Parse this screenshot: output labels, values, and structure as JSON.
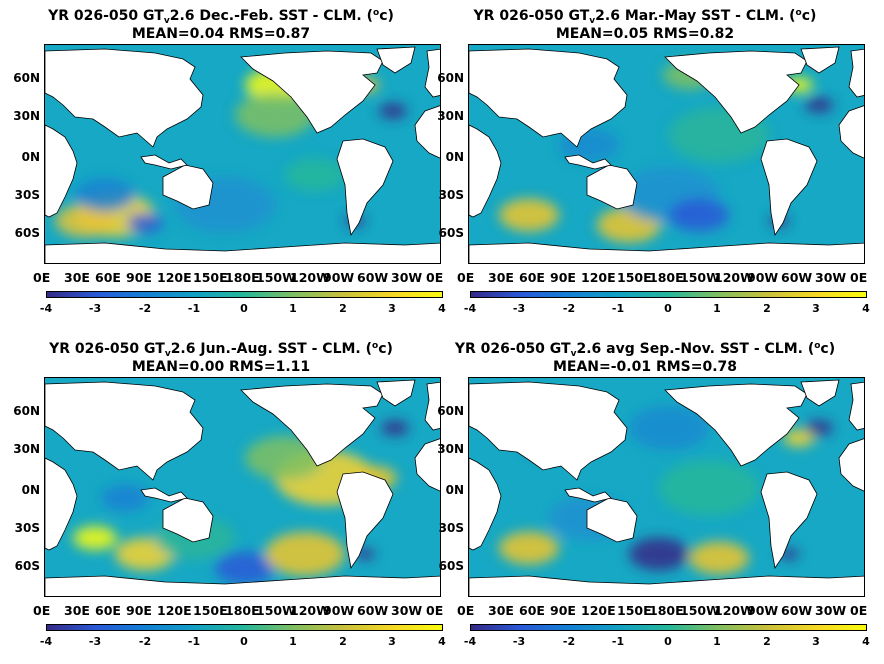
{
  "panels": [
    {
      "title_prefix": "YR 026-050 GT",
      "title_sub": "v",
      "title_mid": "2.6  Dec.-Feb. SST - CLM. (",
      "title_sup": "o",
      "title_end": "c)",
      "stats": "MEAN=0.04   RMS=0.87"
    },
    {
      "title_prefix": "YR 026-050 GT",
      "title_sub": "v",
      "title_mid": "2.6 Mar.-May SST - CLM. (",
      "title_sup": "o",
      "title_end": "c)",
      "stats": "MEAN=0.05   RMS=0.82"
    },
    {
      "title_prefix": "YR 026-050 GT",
      "title_sub": "v",
      "title_mid": "2.6 Jun.-Aug. SST - CLM. (",
      "title_sup": "o",
      "title_end": "c)",
      "stats": "MEAN=0.00   RMS=1.11"
    },
    {
      "title_prefix": "YR 026-050 GT",
      "title_sub": "v",
      "title_mid": "2.6 avg Sep.-Nov. SST - CLM. (",
      "title_sup": "o",
      "title_end": "c)",
      "stats": "MEAN=-0.01   RMS=0.78"
    }
  ],
  "lat_labels": [
    "60N",
    "30N",
    "0N",
    "30S",
    "60S"
  ],
  "lon_labels": [
    "0E",
    "30E",
    "60E",
    "90E",
    "120E",
    "150E",
    "180E",
    "150W",
    "120W",
    "90W",
    "60W",
    "30W",
    "0E"
  ],
  "colorbar_ticks": [
    "-4",
    "-3",
    "-2",
    "-1",
    "0",
    "1",
    "2",
    "3",
    "4"
  ],
  "colors": {
    "ocean_base": "#16a8c4",
    "land": "#ffffff",
    "low": "#352a87",
    "high": "#f9fb0e"
  }
}
